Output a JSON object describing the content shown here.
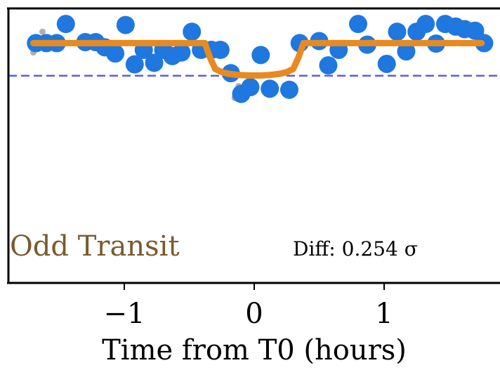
{
  "chart_data": {
    "type": "scatter",
    "title": "",
    "xlabel": "Time from T0 (hours)",
    "ylabel": "",
    "xlim": [
      -1.9,
      1.9
    ],
    "ylim": [
      0.97,
      1.023
    ],
    "xticks": [
      {
        "value": -1,
        "label": "−1"
      },
      {
        "value": 0,
        "label": "0"
      },
      {
        "value": 1,
        "label": "1"
      }
    ],
    "grid": false,
    "annotations": {
      "label": "Odd Transit",
      "diff_text": "Diff: 0.254 σ"
    },
    "colors": {
      "binned": "#1f77e0",
      "raw": "#b0b0b0",
      "model": "#e88a1f",
      "depth_line": "#5a5af0",
      "label": "#7a5a2e"
    },
    "depth_level": 1.01,
    "raw_points": [
      {
        "x": -1.63,
        "y": 1.0185
      },
      {
        "x": -1.7,
        "y": 1.0145
      },
      {
        "x": -0.12,
        "y": 1.008
      },
      {
        "x": -0.15,
        "y": 1.0057
      }
    ],
    "binned_points": [
      {
        "x": -1.68,
        "y": 1.0163
      },
      {
        "x": -1.6,
        "y": 1.0163
      },
      {
        "x": -1.52,
        "y": 1.0163
      },
      {
        "x": -1.45,
        "y": 1.02
      },
      {
        "x": -1.3,
        "y": 1.0165
      },
      {
        "x": -1.22,
        "y": 1.0165
      },
      {
        "x": -1.15,
        "y": 1.0155
      },
      {
        "x": -1.07,
        "y": 1.0143
      },
      {
        "x": -0.99,
        "y": 1.0198
      },
      {
        "x": -0.92,
        "y": 1.0122
      },
      {
        "x": -0.85,
        "y": 1.015
      },
      {
        "x": -0.77,
        "y": 1.0125
      },
      {
        "x": -0.7,
        "y": 1.015
      },
      {
        "x": -0.63,
        "y": 1.0138
      },
      {
        "x": -0.56,
        "y": 1.0145
      },
      {
        "x": -0.48,
        "y": 1.0185
      },
      {
        "x": -0.41,
        "y": 1.015
      },
      {
        "x": -0.33,
        "y": 1.015
      },
      {
        "x": -0.26,
        "y": 1.015
      },
      {
        "x": -0.18,
        "y": 1.0105
      },
      {
        "x": -0.1,
        "y": 1.0065
      },
      {
        "x": -0.03,
        "y": 1.0078
      },
      {
        "x": 0.05,
        "y": 1.014
      },
      {
        "x": 0.12,
        "y": 1.0075
      },
      {
        "x": 0.27,
        "y": 1.0073
      },
      {
        "x": 0.35,
        "y": 1.0163
      },
      {
        "x": 0.5,
        "y": 1.0167
      },
      {
        "x": 0.57,
        "y": 1.012
      },
      {
        "x": 0.65,
        "y": 1.015
      },
      {
        "x": 0.8,
        "y": 1.02
      },
      {
        "x": 0.87,
        "y": 1.016
      },
      {
        "x": 1.02,
        "y": 1.0123
      },
      {
        "x": 1.1,
        "y": 1.0185
      },
      {
        "x": 1.17,
        "y": 1.0147
      },
      {
        "x": 1.25,
        "y": 1.0185
      },
      {
        "x": 1.32,
        "y": 1.02
      },
      {
        "x": 1.4,
        "y": 1.0162
      },
      {
        "x": 1.47,
        "y": 1.02
      },
      {
        "x": 1.55,
        "y": 1.0195
      },
      {
        "x": 1.62,
        "y": 1.019
      },
      {
        "x": 1.7,
        "y": 1.0187
      },
      {
        "x": 1.77,
        "y": 1.0163
      }
    ],
    "model_curve": [
      {
        "x": -1.7,
        "y": 1.0163
      },
      {
        "x": -0.38,
        "y": 1.0163
      },
      {
        "x": -0.34,
        "y": 1.0135
      },
      {
        "x": -0.3,
        "y": 1.0113
      },
      {
        "x": -0.25,
        "y": 1.0107
      },
      {
        "x": -0.2,
        "y": 1.0104
      },
      {
        "x": -0.12,
        "y": 1.01015
      },
      {
        "x": -0.05,
        "y": 1.01005
      },
      {
        "x": 0.05,
        "y": 1.01005
      },
      {
        "x": 0.12,
        "y": 1.01015
      },
      {
        "x": 0.2,
        "y": 1.0104
      },
      {
        "x": 0.25,
        "y": 1.0107
      },
      {
        "x": 0.3,
        "y": 1.0113
      },
      {
        "x": 0.34,
        "y": 1.0135
      },
      {
        "x": 0.38,
        "y": 1.0163
      },
      {
        "x": 1.75,
        "y": 1.0163
      }
    ]
  }
}
